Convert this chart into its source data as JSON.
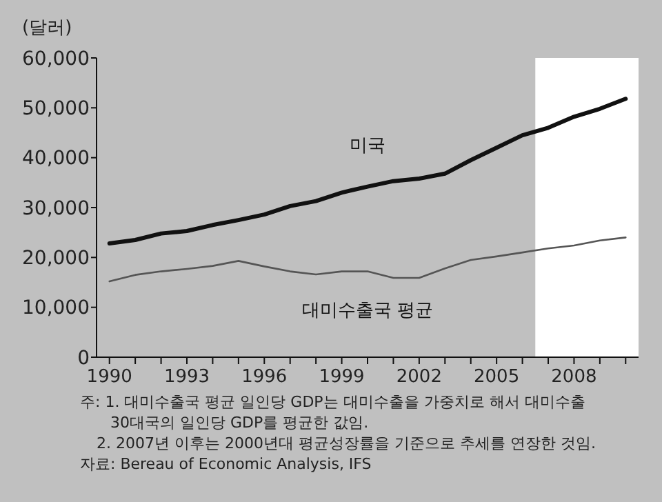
{
  "chart_data": {
    "type": "line",
    "ylabel": "(달러)",
    "x": [
      1990,
      1991,
      1992,
      1993,
      1994,
      1995,
      1996,
      1997,
      1998,
      1999,
      2000,
      2001,
      2002,
      2003,
      2004,
      2005,
      2006,
      2007,
      2008,
      2009,
      2010
    ],
    "series": [
      {
        "name": "미국",
        "color": "#111111",
        "values": [
          22800,
          23500,
          24800,
          25300,
          26500,
          27500,
          28600,
          30300,
          31300,
          33000,
          34200,
          35300,
          35800,
          36800,
          39500,
          42000,
          44500,
          46000,
          48200,
          49800,
          51800
        ]
      },
      {
        "name": "대미수출국 평균",
        "color": "#555555",
        "values": [
          15200,
          16500,
          17200,
          17700,
          18300,
          19300,
          18200,
          17200,
          16600,
          17200,
          17200,
          15900,
          15900,
          17800,
          19500,
          20200,
          21000,
          21800,
          22400,
          23400,
          24000
        ]
      }
    ],
    "xlim": [
      1989.5,
      2010.5
    ],
    "ylim": [
      0,
      60000
    ],
    "xticks": [
      {
        "value": 1990,
        "label": "1990"
      },
      {
        "value": 1991,
        "label": null
      },
      {
        "value": 1992,
        "label": null
      },
      {
        "value": 1993,
        "label": "1993"
      },
      {
        "value": 1994,
        "label": null
      },
      {
        "value": 1995,
        "label": null
      },
      {
        "value": 1996,
        "label": "1996"
      },
      {
        "value": 1997,
        "label": null
      },
      {
        "value": 1998,
        "label": null
      },
      {
        "value": 1999,
        "label": "1999"
      },
      {
        "value": 2000,
        "label": null
      },
      {
        "value": 2001,
        "label": null
      },
      {
        "value": 2002,
        "label": "2002"
      },
      {
        "value": 2003,
        "label": null
      },
      {
        "value": 2004,
        "label": null
      },
      {
        "value": 2005,
        "label": "2005"
      },
      {
        "value": 2006,
        "label": null
      },
      {
        "value": 2007,
        "label": null
      },
      {
        "value": 2008,
        "label": "2008"
      },
      {
        "value": 2009,
        "label": null
      },
      {
        "value": 2010,
        "label": null
      }
    ],
    "yticks": [
      {
        "value": 0,
        "label": "0"
      },
      {
        "value": 10000,
        "label": "10,000"
      },
      {
        "value": 20000,
        "label": "20,000"
      },
      {
        "value": 30000,
        "label": "30,000"
      },
      {
        "value": 40000,
        "label": "40,000"
      },
      {
        "value": 50000,
        "label": "50,000"
      },
      {
        "value": 60000,
        "label": "60,000"
      }
    ],
    "bands": [
      {
        "axis": "x",
        "from": 2006.5,
        "to": 2010.5,
        "color": "#ffffff"
      }
    ],
    "annotations": [
      "주: 1. 대미수출국 평균 일인당 GDP는 대미수출을 가중치로 해서 대미수출 30대국의 일인당 GDP를 평균한 값임.",
      "2. 2007년 이후는 2000년대 평균성장률을 기준으로 추세를 연장한 것임.",
      "자료: Bereau of Economic Analysis, IFS"
    ],
    "grid": false,
    "line_style": "solid"
  }
}
